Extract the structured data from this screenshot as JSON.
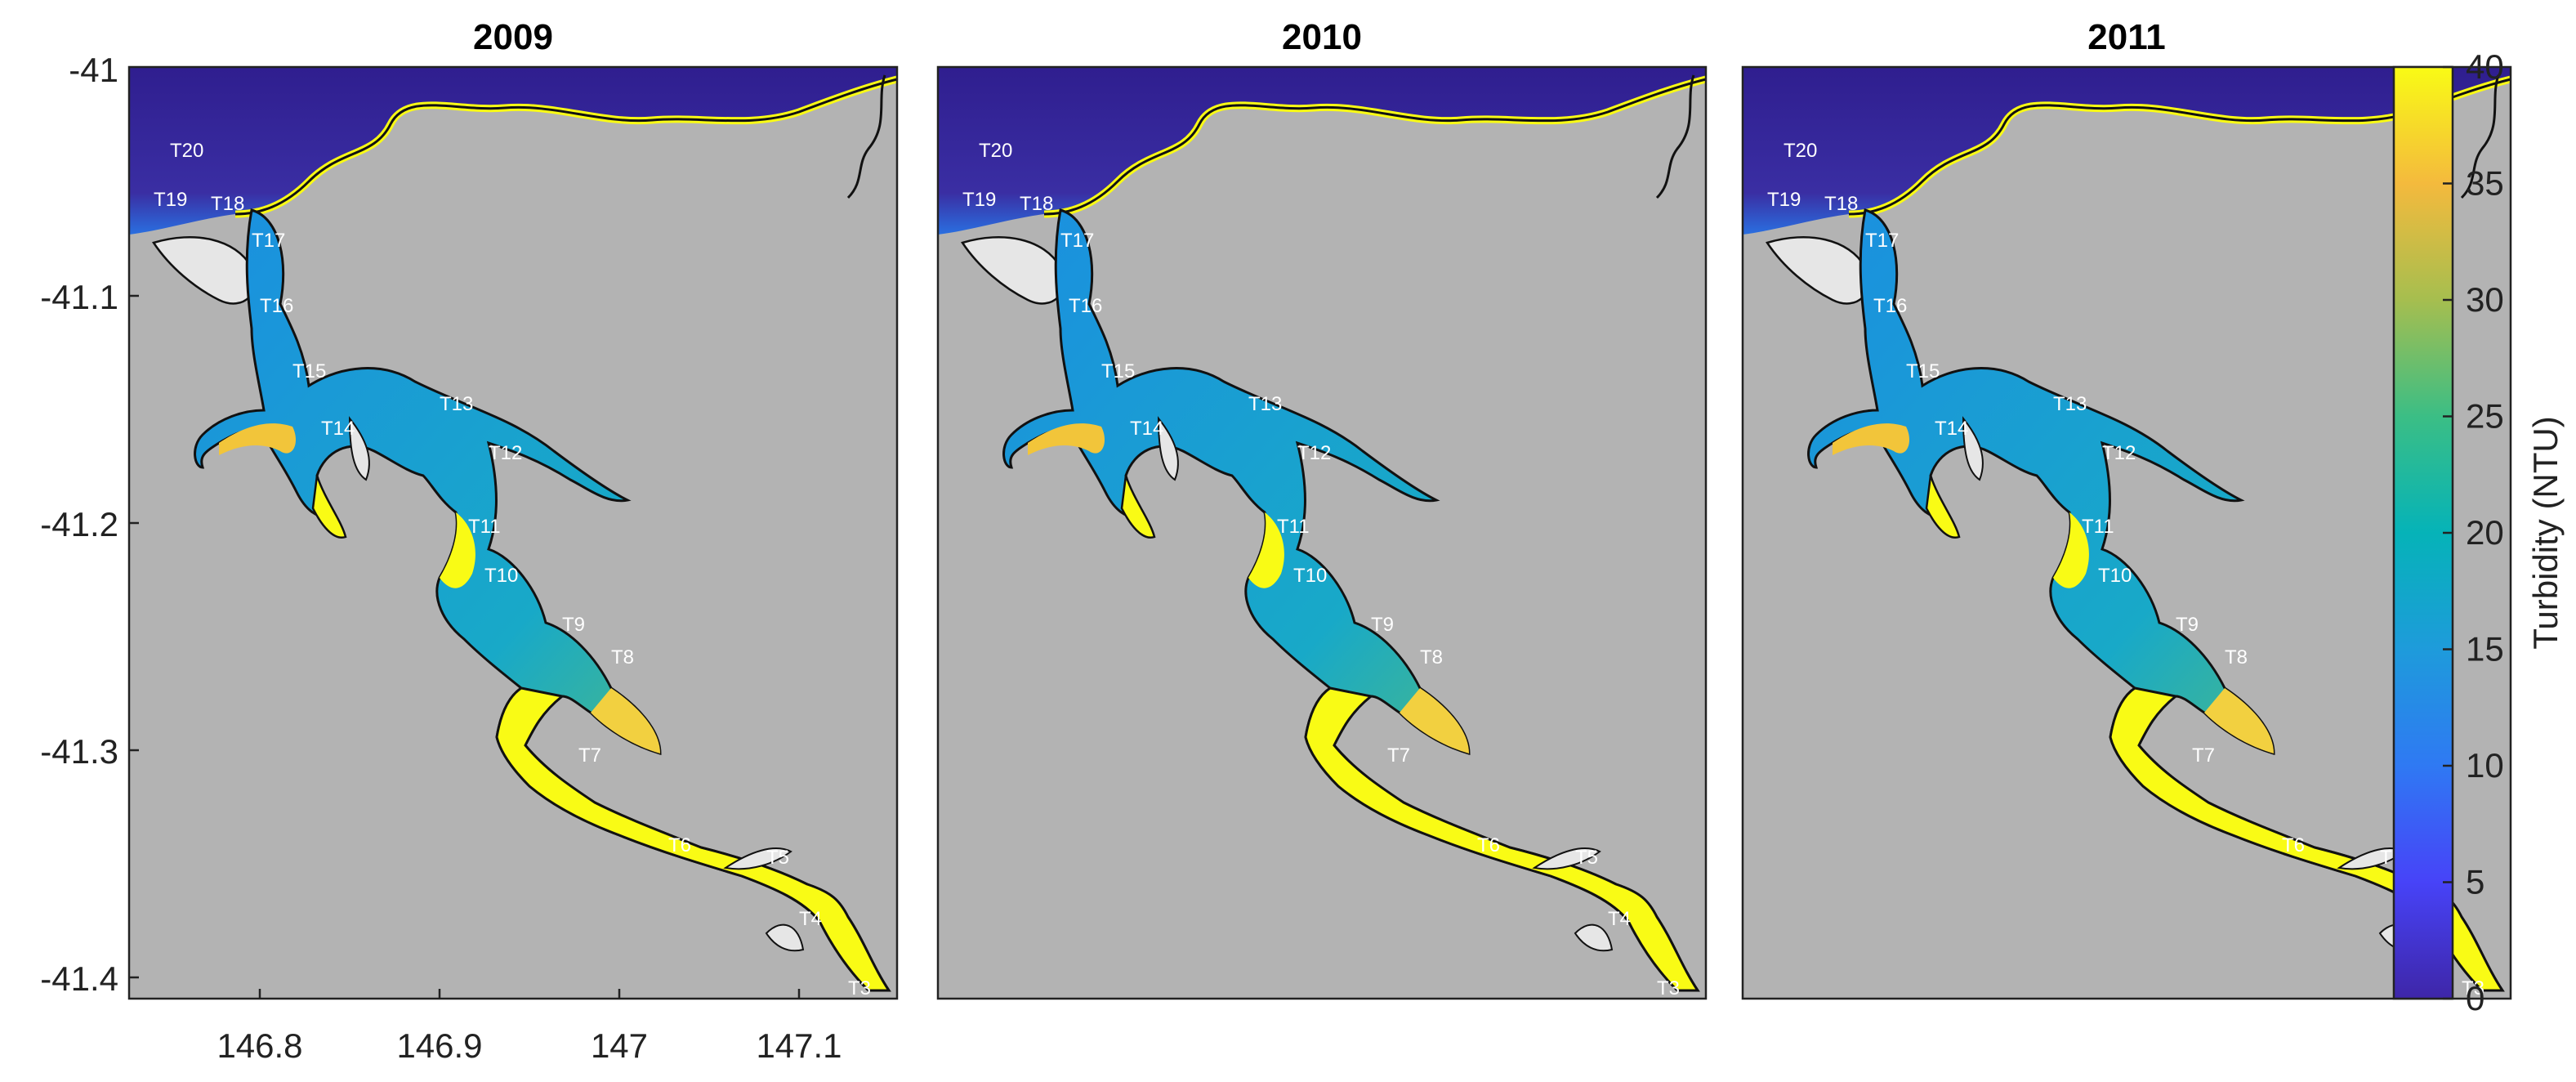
{
  "panels": [
    {
      "title": "2009"
    },
    {
      "title": "2010"
    },
    {
      "title": "2011"
    }
  ],
  "x_ticks": [
    "146.8",
    "146.9",
    "147",
    "147.1"
  ],
  "y_ticks": [
    "-41",
    "-41.1",
    "-41.2",
    "-41.3",
    "-41.4"
  ],
  "colorbar": {
    "label": "Turbidity (NTU)",
    "ticks": [
      "0",
      "5",
      "10",
      "15",
      "20",
      "25",
      "30",
      "35",
      "40"
    ],
    "colormap": [
      "#3e26a8",
      "#4743f8",
      "#2f79f3",
      "#1e9bdb",
      "#05b3b8",
      "#3bbe85",
      "#a6be4f",
      "#f4ba3d",
      "#f9fb15"
    ]
  },
  "sites": [
    "T20",
    "T19",
    "T18",
    "T17",
    "T16",
    "T15",
    "T14",
    "T13",
    "T12",
    "T11",
    "T10",
    "T9",
    "T8",
    "T7",
    "T6",
    "T5",
    "T4",
    "T3"
  ],
  "colors": {
    "land": "#b3b3b3",
    "ocean": "#352a87",
    "coastal_band": "#f9fb15",
    "river_outline": "#111111"
  }
}
